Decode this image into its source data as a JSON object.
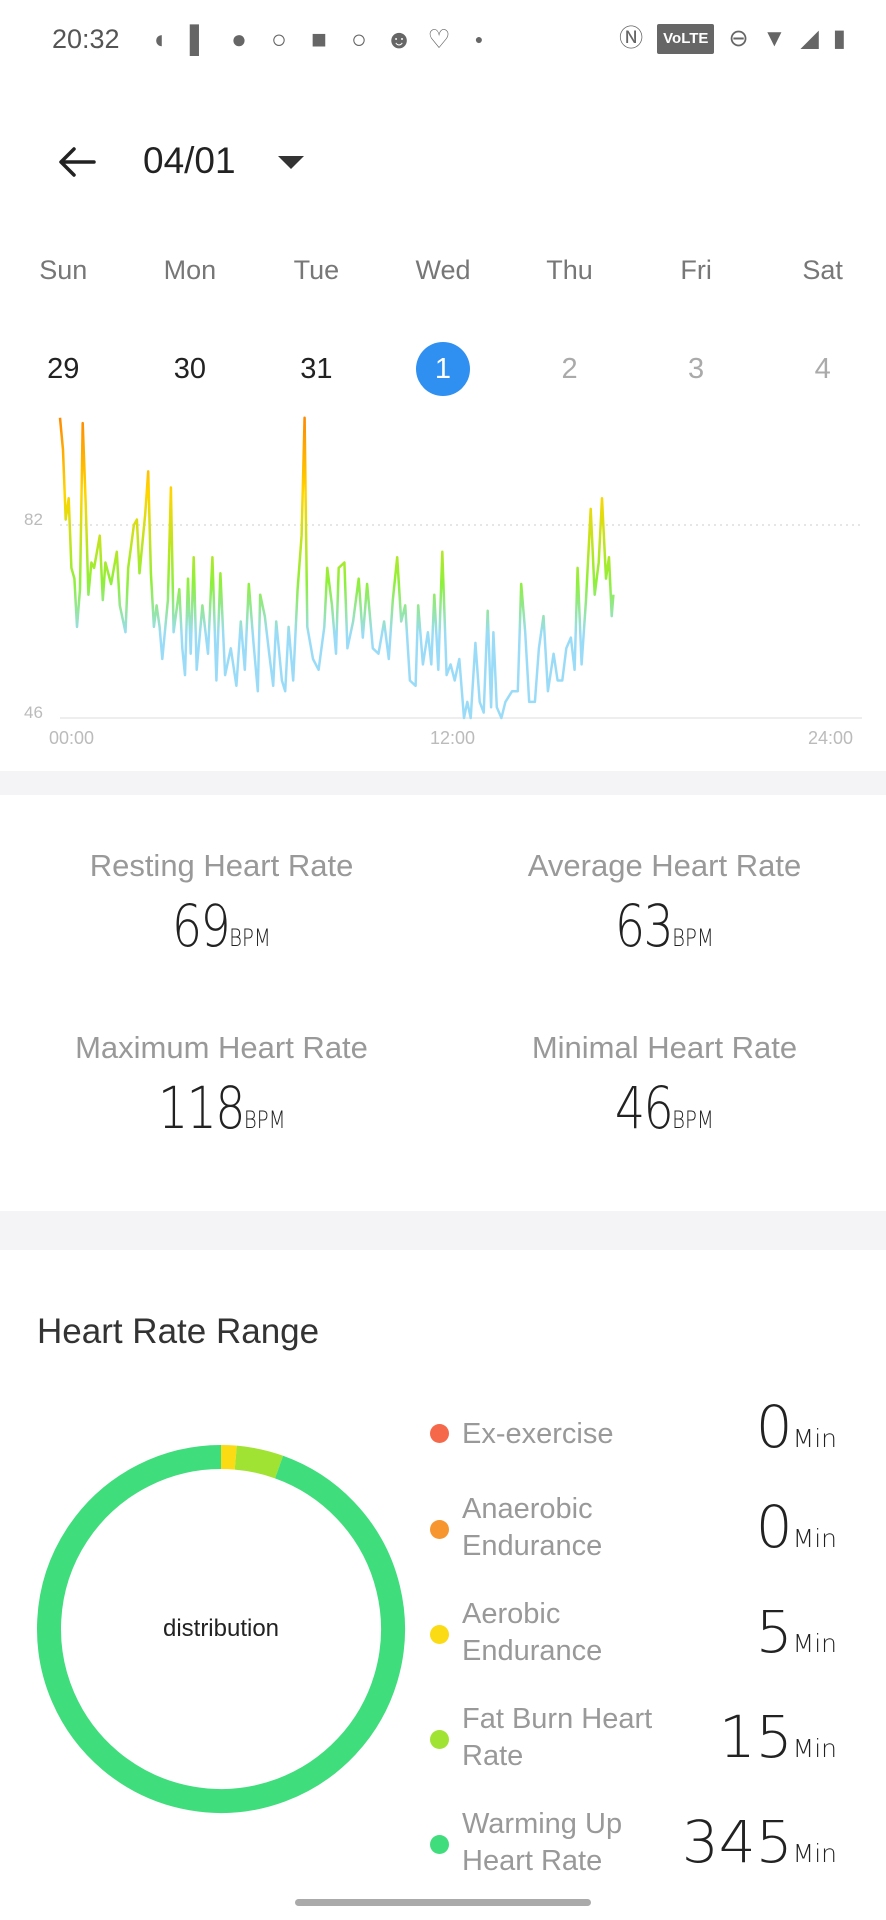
{
  "status_bar": {
    "time": "20:32",
    "notification_icons": [
      "discord-icon",
      "patreon-icon",
      "circle-app-icon",
      "search-app-icon",
      "square-app-icon",
      "search-app-icon",
      "reddit-icon",
      "mi-fit-icon",
      "dot-icon"
    ],
    "system_icons": [
      "nfc-icon",
      "volte-icon",
      "dnd-icon",
      "wifi-icon",
      "signal-icon",
      "battery-icon"
    ],
    "volte_label": "VoLTE"
  },
  "header": {
    "date": "04/01"
  },
  "week": {
    "days": [
      "Sun",
      "Mon",
      "Tue",
      "Wed",
      "Thu",
      "Fri",
      "Sat"
    ],
    "dates": [
      {
        "label": "29",
        "state": "past"
      },
      {
        "label": "30",
        "state": "past"
      },
      {
        "label": "31",
        "state": "past"
      },
      {
        "label": "1",
        "state": "selected"
      },
      {
        "label": "2",
        "state": "future"
      },
      {
        "label": "3",
        "state": "future"
      },
      {
        "label": "4",
        "state": "future"
      }
    ],
    "selected_color": "#2f90f2"
  },
  "chart_data": {
    "type": "line",
    "x_unit": "hour",
    "xlim": [
      0,
      24
    ],
    "x_ticks": [
      "00:00",
      "12:00",
      "24:00"
    ],
    "y_ticks": [
      "82",
      "46"
    ],
    "ylim": [
      46,
      102
    ],
    "grid": "dotted line at 82",
    "colors": {
      "low": "#9adcf7",
      "mid": "#8ef03a",
      "high": "#ffd500",
      "peak": "#ff8a00"
    },
    "x": [
      0,
      0.09,
      0.17,
      0.26,
      0.34,
      0.43,
      0.51,
      0.6,
      0.68,
      0.77,
      0.85,
      0.94,
      1.02,
      1.19,
      1.28,
      1.36,
      1.53,
      1.7,
      1.79,
      1.96,
      2.04,
      2.21,
      2.3,
      2.38,
      2.55,
      2.64,
      2.72,
      2.81,
      2.89,
      2.98,
      3.06,
      3.23,
      3.32,
      3.4,
      3.57,
      3.66,
      3.74,
      3.83,
      3.91,
      4.0,
      4.09,
      4.26,
      4.43,
      4.56,
      4.68,
      4.8,
      4.94,
      5.11,
      5.28,
      5.41,
      5.53,
      5.65,
      5.79,
      5.92,
      5.99,
      6.13,
      6.26,
      6.38,
      6.47,
      6.64,
      6.74,
      6.84,
      6.98,
      7.11,
      7.23,
      7.32,
      7.4,
      7.57,
      7.74,
      7.91,
      8.0,
      8.14,
      8.26,
      8.34,
      8.51,
      8.6,
      8.77,
      8.94,
      9.06,
      9.19,
      9.36,
      9.53,
      9.7,
      9.84,
      9.96,
      10.09,
      10.21,
      10.33,
      10.47,
      10.64,
      10.72,
      10.86,
      11.01,
      11.11,
      11.2,
      11.32,
      11.44,
      11.57,
      11.69,
      11.81,
      11.95,
      12.09,
      12.19,
      12.29,
      12.43,
      12.56,
      12.68,
      12.8,
      12.9,
      12.97,
      13.07,
      13.21,
      13.33,
      13.53,
      13.7,
      13.8,
      13.92,
      14.04,
      14.21,
      14.33,
      14.47,
      14.6,
      14.77,
      14.89,
      15.03,
      15.15,
      15.29,
      15.4,
      15.49,
      15.61,
      15.74,
      15.88,
      16.0,
      16.12,
      16.22,
      16.34,
      16.43,
      16.51,
      16.56
    ],
    "y": [
      102,
      96,
      83,
      87,
      74,
      72,
      63,
      70,
      101,
      86,
      69,
      75,
      74,
      80,
      68,
      75,
      71,
      77,
      67,
      62,
      74,
      82,
      83,
      73,
      84,
      92,
      73,
      63,
      67,
      63,
      57,
      68,
      89,
      62,
      70,
      59,
      54,
      72,
      58,
      76,
      55,
      67,
      58,
      76,
      53,
      73,
      54,
      59,
      52,
      64,
      55,
      71,
      60,
      51,
      69,
      65,
      58,
      52,
      64,
      53,
      51,
      63,
      53,
      70,
      80,
      102,
      63,
      57,
      55,
      63,
      74,
      67,
      58,
      74,
      75,
      59,
      64,
      72,
      61,
      71,
      59,
      58,
      64,
      57,
      68,
      76,
      64,
      67,
      53,
      52,
      67,
      56,
      62,
      56,
      69,
      55,
      77,
      54,
      56,
      53,
      57,
      46,
      49,
      46,
      60,
      49,
      47,
      66,
      48,
      62,
      48,
      46,
      49,
      51,
      51,
      71,
      62,
      49,
      49,
      59,
      65,
      51,
      58,
      53,
      53,
      59,
      61,
      55,
      74,
      56,
      68,
      85,
      69,
      75,
      87,
      72,
      76,
      65,
      69
    ]
  },
  "stats": [
    {
      "label": "Resting Heart Rate",
      "value": "69",
      "unit": "BPM"
    },
    {
      "label": "Average Heart Rate",
      "value": "63",
      "unit": "BPM"
    },
    {
      "label": "Maximum Heart Rate",
      "value": "118",
      "unit": "BPM"
    },
    {
      "label": "Minimal Heart Rate",
      "value": "46",
      "unit": "BPM"
    }
  ],
  "range": {
    "title": "Heart Rate Range",
    "center_label": "distribution",
    "zones": [
      {
        "name": "Ex-exercise",
        "minutes": 0,
        "value": "0",
        "unit": "Min",
        "color": "#f5684a"
      },
      {
        "name": "Anaerobic Endurance",
        "minutes": 0,
        "value": "0",
        "unit": "Min",
        "color": "#f7952f"
      },
      {
        "name": "Aerobic Endurance",
        "minutes": 5,
        "value": "5",
        "unit": "Min",
        "color": "#fadb14"
      },
      {
        "name": "Fat Burn Heart Rate",
        "minutes": 15,
        "value": "15",
        "unit": "Min",
        "color": "#a0e332"
      },
      {
        "name": "Warming Up Heart Rate",
        "minutes": 345,
        "value": "345",
        "unit": "Min",
        "color": "#40dd7c"
      }
    ]
  }
}
